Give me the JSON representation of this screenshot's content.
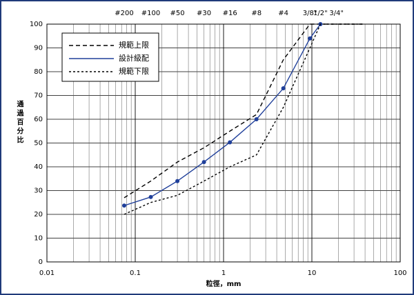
{
  "chart_data": {
    "type": "line",
    "xlabel": "粒徑，mm",
    "ylabel": "通過百分比",
    "xscale": "log",
    "xlim": [
      0.01,
      100
    ],
    "xticks": [
      0.01,
      0.1,
      1,
      10,
      100
    ],
    "ylim": [
      0,
      100
    ],
    "yticks": [
      0,
      10,
      20,
      30,
      40,
      50,
      60,
      70,
      80,
      90,
      100
    ],
    "grid": true,
    "legend": "upper left",
    "sieves": [
      {
        "value": 0.075,
        "label": "#200"
      },
      {
        "value": 0.15,
        "label": "#100"
      },
      {
        "value": 0.3,
        "label": "#50"
      },
      {
        "value": 0.6,
        "label": "#30"
      },
      {
        "value": 1.18,
        "label": "#16"
      },
      {
        "value": 2.36,
        "label": "#8"
      },
      {
        "value": 4.75,
        "label": "#4"
      },
      {
        "value": 9.5,
        "label": "3/8\""
      },
      {
        "value": 12.5,
        "label": "1/2\""
      },
      {
        "value": 19,
        "label": "3/4\""
      }
    ],
    "series": [
      {
        "name": "規範上限",
        "color": "#000000",
        "dash": "6,4",
        "marker": false,
        "x": [
          0.075,
          0.15,
          0.3,
          0.6,
          1.18,
          2.36,
          4.75,
          9.5,
          37.5
        ],
        "values": [
          27,
          34,
          42,
          48,
          55,
          62,
          85,
          100,
          100
        ]
      },
      {
        "name": "設計級配",
        "color": "#1f3f9a",
        "dash": "none",
        "marker": true,
        "x": [
          0.075,
          0.15,
          0.3,
          0.6,
          1.18,
          2.36,
          4.75,
          9.5,
          12.5
        ],
        "values": [
          23.7,
          27.3,
          34,
          42,
          50.3,
          60,
          73,
          94,
          100
        ]
      },
      {
        "name": "規範下限",
        "color": "#000000",
        "dash": "3,3",
        "marker": false,
        "x": [
          0.075,
          0.15,
          0.3,
          0.6,
          1.18,
          2.36,
          4.75,
          9.5,
          12.5,
          37.5
        ],
        "values": [
          20,
          25,
          28,
          34,
          40,
          45,
          65,
          90,
          100,
          100
        ]
      }
    ]
  }
}
